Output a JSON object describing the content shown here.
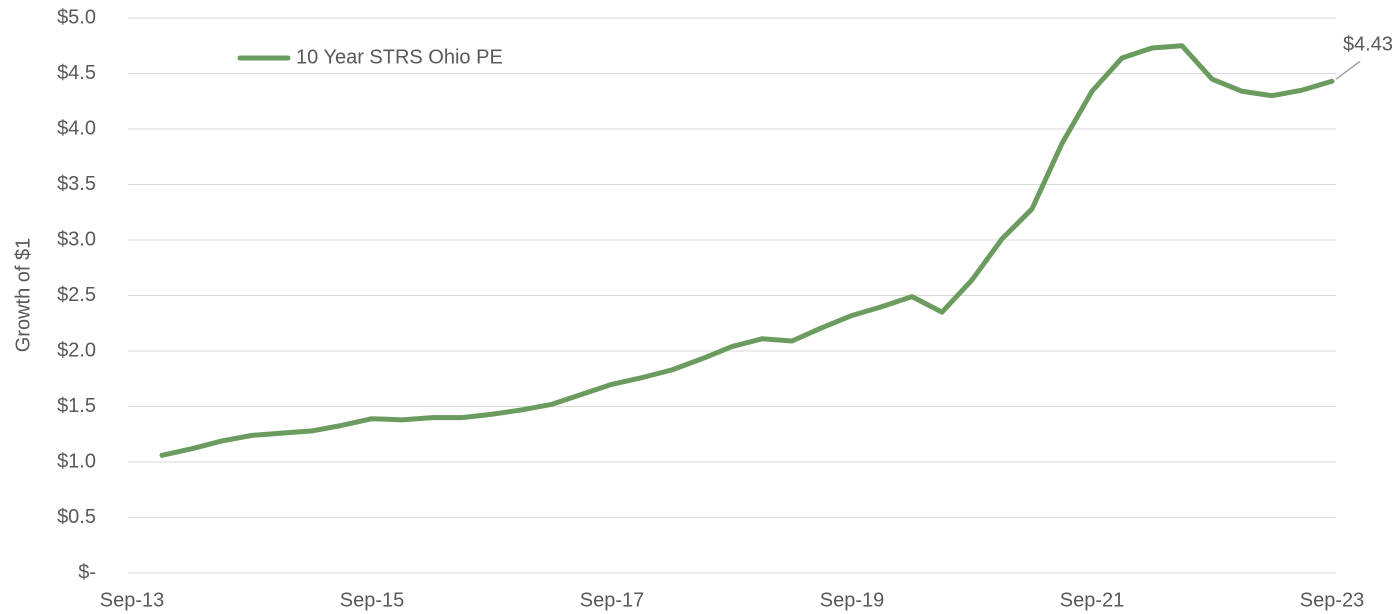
{
  "chart_data": {
    "type": "line",
    "y_label": "Growth of $1",
    "categories": [
      "Sep-13",
      null,
      null,
      null,
      null,
      null,
      null,
      null,
      "Sep-15",
      null,
      null,
      null,
      null,
      null,
      null,
      null,
      "Sep-17",
      null,
      null,
      null,
      null,
      null,
      null,
      null,
      "Sep-19",
      null,
      null,
      null,
      null,
      null,
      null,
      null,
      "Sep-21",
      null,
      null,
      null,
      null,
      null,
      null,
      null,
      "Sep-23"
    ],
    "series": [
      {
        "name": "10 Year STRS Ohio PE",
        "color": "#6b9b5e",
        "values": [
          null,
          1.06,
          1.12,
          1.19,
          1.24,
          1.26,
          1.28,
          1.33,
          1.39,
          1.38,
          1.4,
          1.4,
          1.43,
          1.47,
          1.52,
          1.61,
          1.7,
          1.76,
          1.83,
          1.93,
          2.04,
          2.11,
          2.09,
          2.21,
          2.32,
          2.4,
          2.49,
          2.35,
          2.64,
          3.01,
          3.28,
          3.87,
          4.34,
          4.64,
          4.73,
          4.75,
          4.45,
          4.34,
          4.3,
          4.35,
          4.43
        ],
        "value_labels": [
          null,
          null,
          null,
          null,
          null,
          null,
          null,
          null,
          null,
          null,
          null,
          null,
          null,
          null,
          null,
          null,
          null,
          null,
          null,
          null,
          null,
          null,
          null,
          null,
          null,
          null,
          null,
          null,
          null,
          null,
          null,
          null,
          null,
          null,
          null,
          null,
          null,
          null,
          null,
          null,
          "$4.43"
        ]
      }
    ],
    "ylim": [
      0,
      5
    ],
    "yticks": [
      {
        "value": 0,
        "label": "$-"
      },
      {
        "value": 0.5,
        "label": "$0.5"
      },
      {
        "value": 1,
        "label": "$1.0"
      },
      {
        "value": 1.5,
        "label": "$1.5"
      },
      {
        "value": 2,
        "label": "$2.0"
      },
      {
        "value": 2.5,
        "label": "$2.5"
      },
      {
        "value": 3,
        "label": "$3.0"
      },
      {
        "value": 3.5,
        "label": "$3.5"
      },
      {
        "value": 4,
        "label": "$4.0"
      },
      {
        "value": 4.5,
        "label": "$4.5"
      },
      {
        "value": 5,
        "label": "$5.0"
      }
    ],
    "grid": true,
    "legend": "top-left"
  }
}
